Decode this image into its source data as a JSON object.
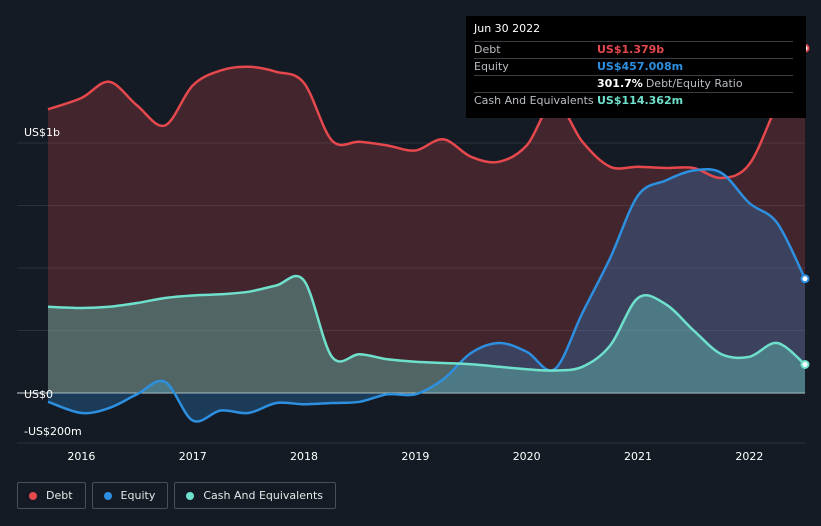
{
  "chart_data": {
    "type": "area",
    "title": "",
    "xlabel": "",
    "ylabel": "",
    "y_axis_labels": [
      "US$1b",
      "US$0",
      "-US$200m"
    ],
    "x_tick_labels": [
      "2016",
      "2017",
      "2018",
      "2019",
      "2020",
      "2021",
      "2022"
    ],
    "x_range": [
      2015.7,
      2022.5
    ],
    "ylim": [
      -200,
      1379
    ],
    "series": [
      {
        "name": "Debt",
        "color": "#e5484d",
        "points": [
          [
            2015.7,
            1135
          ],
          [
            2016.0,
            1180
          ],
          [
            2016.25,
            1245
          ],
          [
            2016.5,
            1150
          ],
          [
            2016.75,
            1070
          ],
          [
            2017.0,
            1230
          ],
          [
            2017.25,
            1290
          ],
          [
            2017.5,
            1305
          ],
          [
            2017.75,
            1285
          ],
          [
            2018.0,
            1240
          ],
          [
            2018.25,
            1010
          ],
          [
            2018.5,
            1005
          ],
          [
            2018.75,
            990
          ],
          [
            2019.0,
            970
          ],
          [
            2019.25,
            1015
          ],
          [
            2019.5,
            945
          ],
          [
            2019.75,
            925
          ],
          [
            2020.0,
            990
          ],
          [
            2020.25,
            1165
          ],
          [
            2020.5,
            1005
          ],
          [
            2020.75,
            905
          ],
          [
            2021.0,
            905
          ],
          [
            2021.25,
            900
          ],
          [
            2021.5,
            900
          ],
          [
            2021.75,
            860
          ],
          [
            2022.0,
            915
          ],
          [
            2022.25,
            1155
          ],
          [
            2022.5,
            1379
          ]
        ]
      },
      {
        "name": "Equity",
        "color": "#2d8fe0",
        "points": [
          [
            2015.7,
            -35
          ],
          [
            2016.0,
            -80
          ],
          [
            2016.25,
            -60
          ],
          [
            2016.5,
            -5
          ],
          [
            2016.75,
            45
          ],
          [
            2017.0,
            -110
          ],
          [
            2017.25,
            -70
          ],
          [
            2017.5,
            -80
          ],
          [
            2017.75,
            -40
          ],
          [
            2018.0,
            -45
          ],
          [
            2018.25,
            -40
          ],
          [
            2018.5,
            -35
          ],
          [
            2018.75,
            -5
          ],
          [
            2019.0,
            -5
          ],
          [
            2019.25,
            55
          ],
          [
            2019.5,
            160
          ],
          [
            2019.75,
            200
          ],
          [
            2020.0,
            165
          ],
          [
            2020.25,
            95
          ],
          [
            2020.5,
            320
          ],
          [
            2020.75,
            540
          ],
          [
            2021.0,
            790
          ],
          [
            2021.25,
            850
          ],
          [
            2021.5,
            890
          ],
          [
            2021.75,
            880
          ],
          [
            2022.0,
            760
          ],
          [
            2022.25,
            680
          ],
          [
            2022.5,
            457
          ]
        ]
      },
      {
        "name": "Cash And Equivalents",
        "color": "#6ee0cc",
        "points": [
          [
            2015.7,
            345
          ],
          [
            2016.0,
            340
          ],
          [
            2016.25,
            345
          ],
          [
            2016.5,
            360
          ],
          [
            2016.75,
            380
          ],
          [
            2017.0,
            390
          ],
          [
            2017.25,
            395
          ],
          [
            2017.5,
            405
          ],
          [
            2017.75,
            430
          ],
          [
            2018.0,
            450
          ],
          [
            2018.25,
            145
          ],
          [
            2018.5,
            155
          ],
          [
            2018.75,
            135
          ],
          [
            2019.0,
            125
          ],
          [
            2019.25,
            120
          ],
          [
            2019.5,
            115
          ],
          [
            2019.75,
            105
          ],
          [
            2020.0,
            95
          ],
          [
            2020.25,
            90
          ],
          [
            2020.5,
            105
          ],
          [
            2020.75,
            190
          ],
          [
            2021.0,
            380
          ],
          [
            2021.25,
            355
          ],
          [
            2021.5,
            250
          ],
          [
            2021.75,
            155
          ],
          [
            2022.0,
            145
          ],
          [
            2022.25,
            200
          ],
          [
            2022.5,
            114
          ]
        ]
      }
    ],
    "legend_position": "bottom-left"
  },
  "tooltip": {
    "date": "Jun 30 2022",
    "rows": [
      {
        "label": "Debt",
        "value": "US$1.379b",
        "color": "#e5484d"
      },
      {
        "label": "Equity",
        "value": "US$457.008m",
        "color": "#2d8fe0"
      },
      {
        "label": "",
        "value": "301.7%",
        "suffix": "Debt/Equity Ratio",
        "color": "#ffffff"
      },
      {
        "label": "Cash And Equivalents",
        "value": "US$114.362m",
        "color": "#6ee0cc"
      }
    ]
  },
  "legend": [
    {
      "label": "Debt",
      "color": "#e5484d"
    },
    {
      "label": "Equity",
      "color": "#2d8fe0"
    },
    {
      "label": "Cash And Equivalents",
      "color": "#6ee0cc"
    }
  ]
}
